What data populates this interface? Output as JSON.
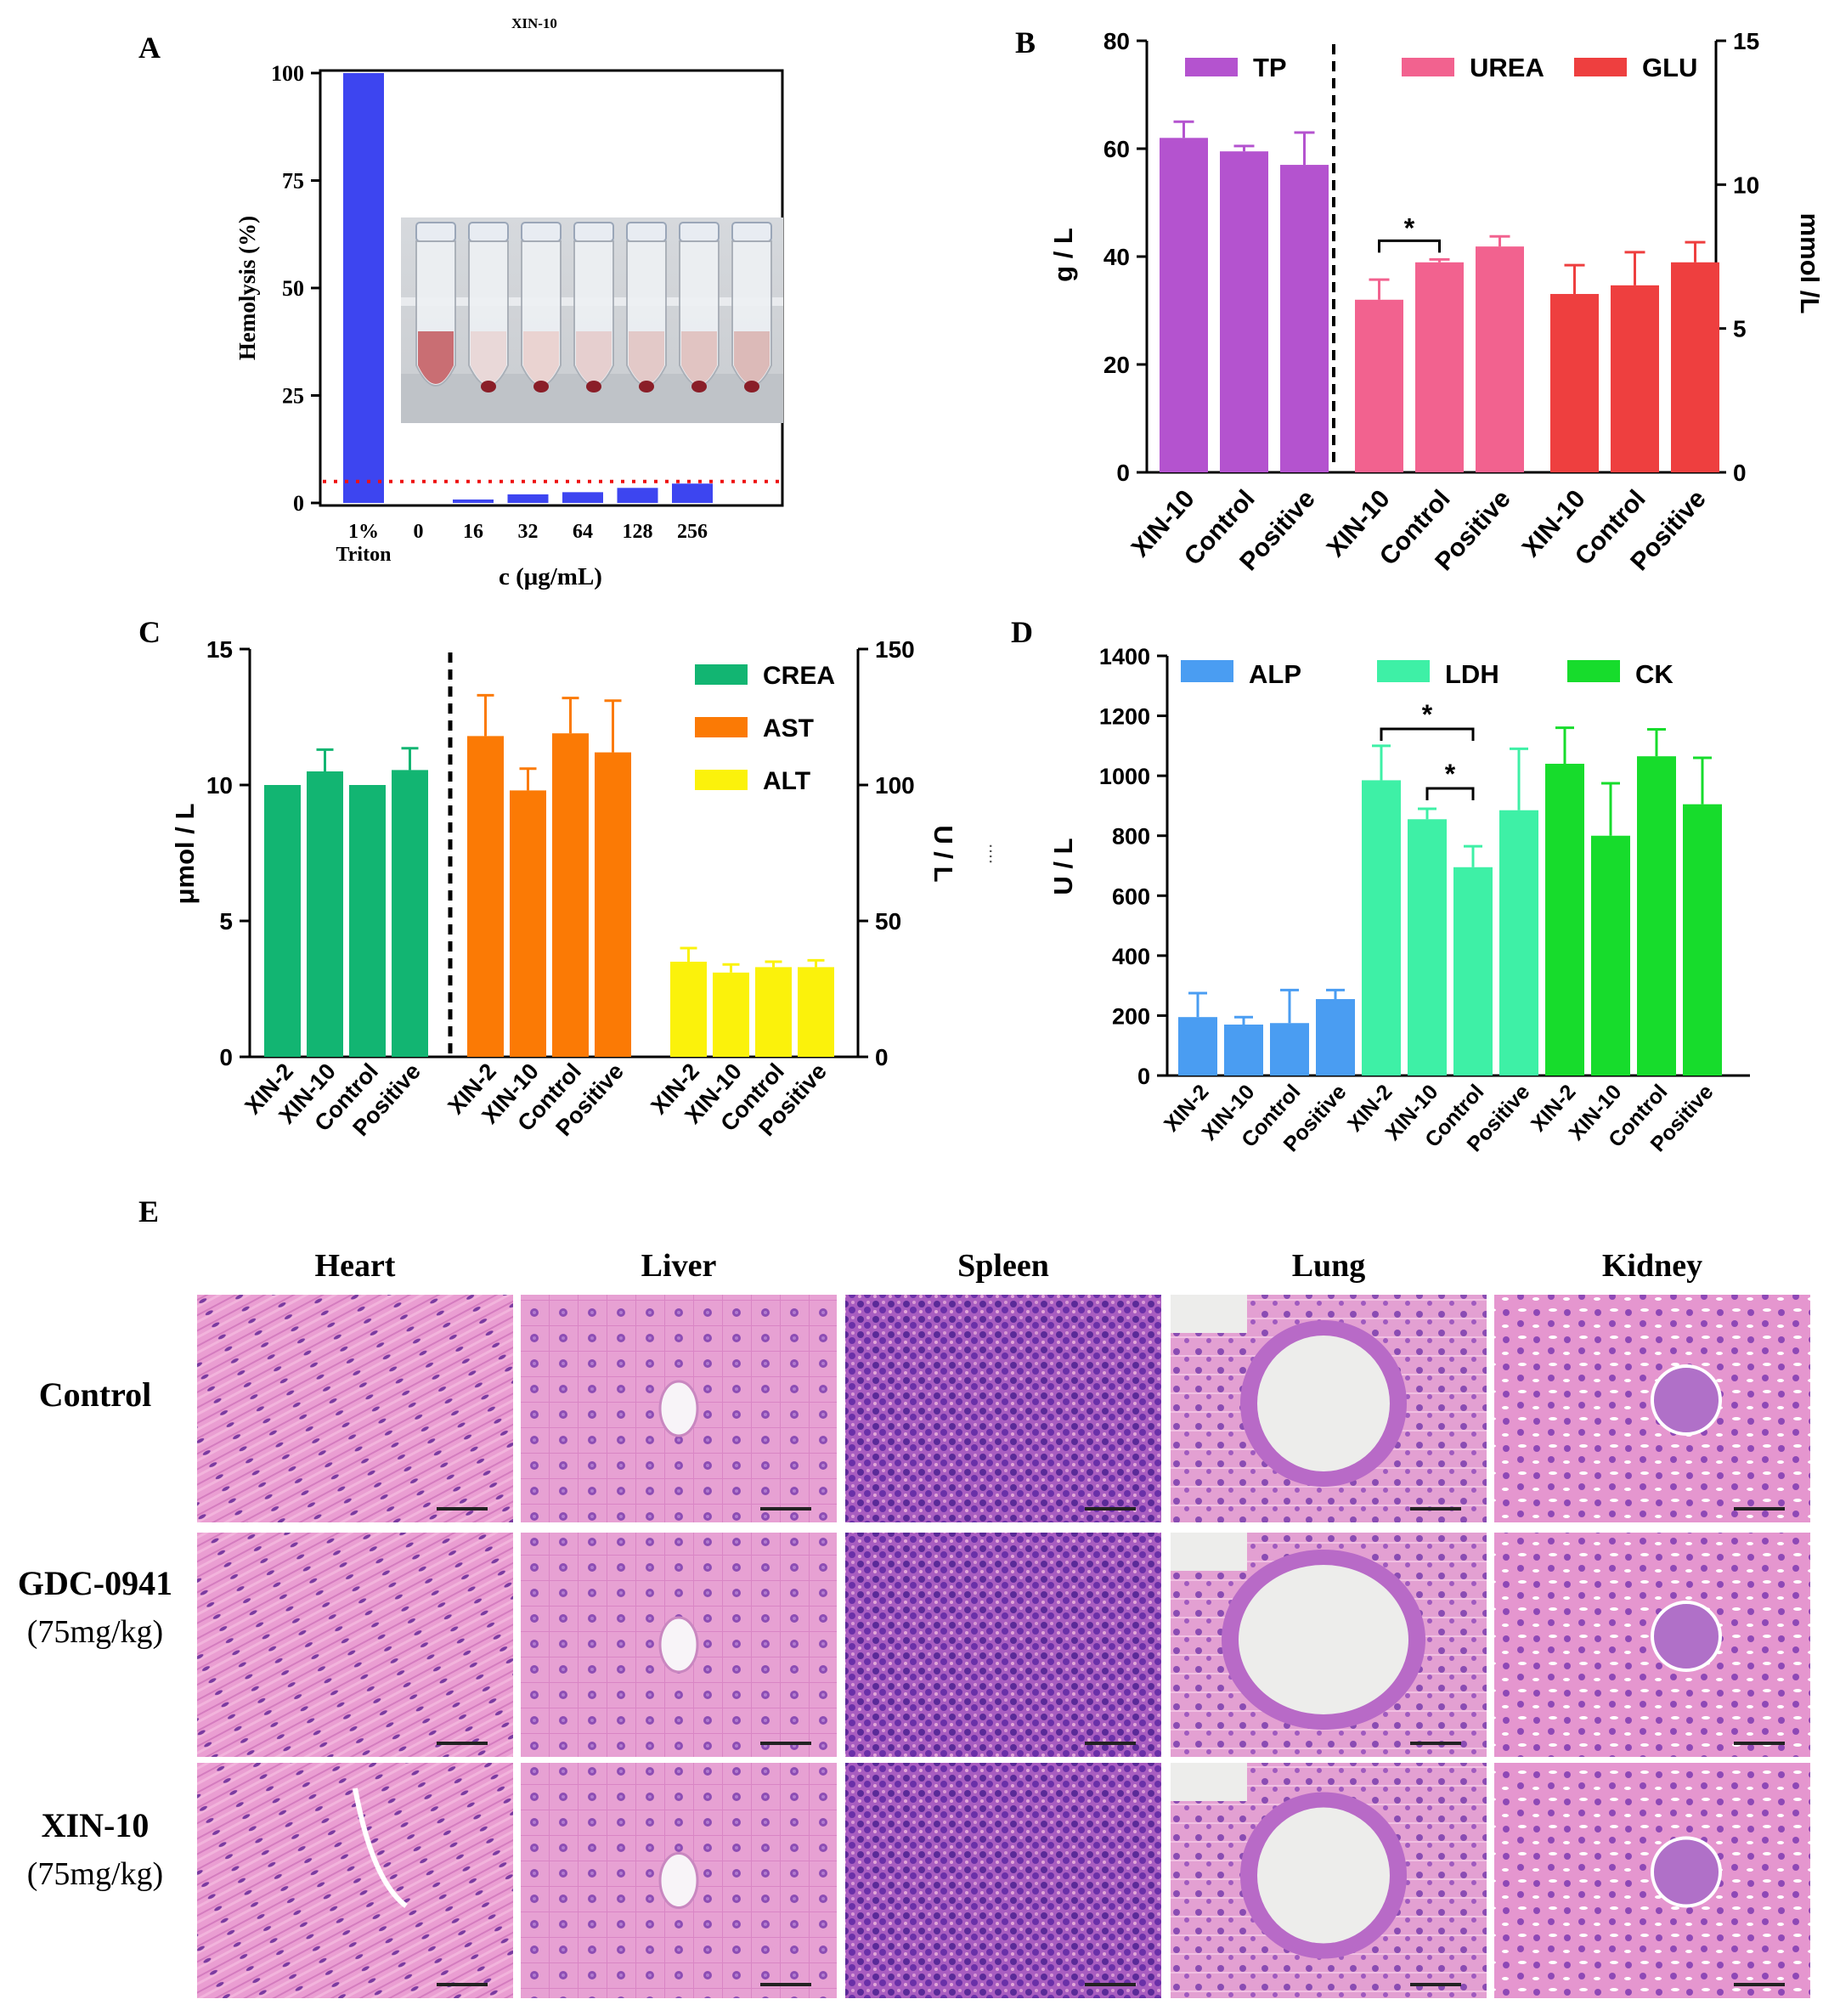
{
  "figure": {
    "panel_letters": [
      "A",
      "B",
      "C",
      "D",
      "E"
    ],
    "histology": {
      "columns": [
        "Heart",
        "Liver",
        "Spleen",
        "Lung",
        "Kidney"
      ],
      "rows": [
        {
          "name": "Control",
          "dose": ""
        },
        {
          "name": "GDC-0941",
          "dose": "(75mg/kg)"
        },
        {
          "name": "XIN-10",
          "dose": "(75mg/kg)"
        }
      ]
    },
    "colors": {
      "blue_bar": "#3d45f0",
      "purple": "#b453cf",
      "pink": "#f2628f",
      "red": "#ee3f3f",
      "crea_green": "#12b572",
      "orange": "#fb7a05",
      "yellow": "#fbf20b",
      "alp_blue": "#4a9df2",
      "ldh_mint": "#3ef0a6",
      "ck_green": "#17dc2c",
      "tissue_pink": "#e79ad0",
      "tissue_purple": "#9a4fae"
    }
  },
  "chart_data": [
    {
      "panel": "A",
      "type": "bar",
      "title": "XIN-10",
      "ylabel": "Hemolysis (%)",
      "xlabel": "c (μg/mL)",
      "ylim": [
        0,
        100
      ],
      "yticks": [
        "0",
        "25",
        "50",
        "75",
        "100"
      ],
      "categories": [
        "1% Triton",
        "0",
        "16",
        "32",
        "64",
        "128",
        "256"
      ],
      "category_labels": [
        [
          "1%",
          "Triton"
        ],
        [
          "0"
        ],
        [
          "16"
        ],
        [
          "32"
        ],
        [
          "64"
        ],
        [
          "128"
        ],
        [
          "256"
        ]
      ],
      "values": [
        100,
        0,
        0.8,
        2,
        2.5,
        3.5,
        4.5
      ],
      "threshold": 5
    },
    {
      "panel": "B",
      "type": "bar",
      "ylabel_left": "g / L",
      "ylabel_right": "mmol /L",
      "ylim_left": [
        0,
        80
      ],
      "ylim_right": [
        0,
        15
      ],
      "yticks_left": [
        "0",
        "20",
        "40",
        "60",
        "80"
      ],
      "yticks_right": [
        "0",
        "5",
        "10",
        "15"
      ],
      "groups": [
        {
          "name": "TP",
          "axis": "left",
          "categories": [
            "XIN-10",
            "Control",
            "Positive"
          ],
          "values": [
            62,
            59.5,
            57
          ],
          "errors": [
            3,
            1,
            6
          ]
        },
        {
          "name": "UREA",
          "axis": "right",
          "categories": [
            "XIN-10",
            "Control",
            "Positive"
          ],
          "values": [
            6,
            7.3,
            7.85
          ],
          "errors": [
            0.7,
            0.1,
            0.35
          ]
        },
        {
          "name": "GLU",
          "axis": "right",
          "categories": [
            "XIN-10",
            "Control",
            "Positive"
          ],
          "values": [
            6.2,
            6.5,
            7.3
          ],
          "errors": [
            1.0,
            1.15,
            0.7
          ]
        }
      ],
      "annotations": [
        {
          "text": "*",
          "between": [
            "XIN-10",
            "Control"
          ],
          "group": "UREA"
        }
      ]
    },
    {
      "panel": "C",
      "type": "bar",
      "ylabel_left": "μmol / L",
      "ylabel_right": "U / L",
      "right_extra": "....",
      "ylim_left": [
        0,
        15
      ],
      "ylim_right": [
        0,
        150
      ],
      "yticks_left": [
        "0",
        "5",
        "10",
        "15"
      ],
      "yticks_right": [
        "0",
        "50",
        "100",
        "150"
      ],
      "groups": [
        {
          "name": "CREA",
          "axis": "left",
          "categories": [
            "XIN-2",
            "XIN-10",
            "Control",
            "Positive"
          ],
          "values": [
            10,
            10.5,
            10,
            10.55
          ],
          "errors": [
            0,
            0.8,
            0,
            0.8
          ]
        },
        {
          "name": "AST",
          "axis": "right",
          "categories": [
            "XIN-2",
            "XIN-10",
            "Control",
            "Positive"
          ],
          "values": [
            118,
            98,
            119,
            112
          ],
          "errors": [
            15,
            8,
            13,
            19
          ]
        },
        {
          "name": "ALT",
          "axis": "right",
          "categories": [
            "XIN-2",
            "XIN-10",
            "Control",
            "Positive"
          ],
          "values": [
            35,
            31,
            33,
            33
          ],
          "errors": [
            5,
            3,
            2,
            2.5
          ]
        }
      ]
    },
    {
      "panel": "D",
      "type": "bar",
      "ylabel": "U / L",
      "ylim": [
        0,
        1400
      ],
      "yticks": [
        "0",
        "200",
        "400",
        "600",
        "800",
        "1000",
        "1200",
        "1400"
      ],
      "groups": [
        {
          "name": "ALP",
          "categories": [
            "XIN-2",
            "XIN-10",
            "Control",
            "Positive"
          ],
          "values": [
            195,
            170,
            175,
            255
          ],
          "errors": [
            80,
            25,
            110,
            30
          ]
        },
        {
          "name": "LDH",
          "categories": [
            "XIN-2",
            "XIN-10",
            "Control",
            "Positive"
          ],
          "values": [
            985,
            855,
            695,
            885
          ],
          "errors": [
            115,
            35,
            70,
            205
          ]
        },
        {
          "name": "CK",
          "categories": [
            "XIN-2",
            "XIN-10",
            "Control",
            "Positive"
          ],
          "values": [
            1040,
            800,
            1065,
            905
          ],
          "errors": [
            120,
            175,
            90,
            155
          ]
        }
      ],
      "annotations": [
        {
          "text": "*",
          "between": [
            "XIN-2",
            "Control"
          ],
          "group": "LDH"
        },
        {
          "text": "*",
          "between": [
            "XIN-10",
            "Control"
          ],
          "group": "LDH"
        }
      ]
    }
  ]
}
